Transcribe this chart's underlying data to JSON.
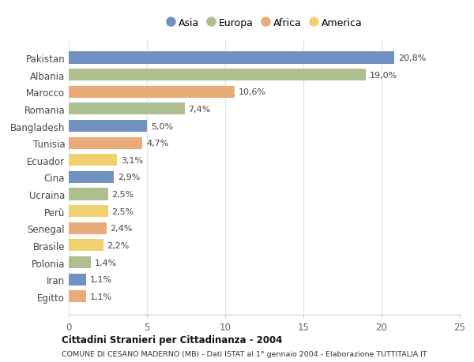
{
  "countries": [
    "Pakistan",
    "Albania",
    "Marocco",
    "Romania",
    "Bangladesh",
    "Tunisia",
    "Ecuador",
    "Cina",
    "Ucraina",
    "Perù",
    "Senegal",
    "Brasile",
    "Polonia",
    "Iran",
    "Egitto"
  ],
  "values": [
    20.8,
    19.0,
    10.6,
    7.4,
    5.0,
    4.7,
    3.1,
    2.9,
    2.5,
    2.5,
    2.4,
    2.2,
    1.4,
    1.1,
    1.1
  ],
  "labels": [
    "20,8%",
    "19,0%",
    "10,6%",
    "7,4%",
    "5,0%",
    "4,7%",
    "3,1%",
    "2,9%",
    "2,5%",
    "2,5%",
    "2,4%",
    "2,2%",
    "1,4%",
    "1,1%",
    "1,1%"
  ],
  "continents": [
    "Asia",
    "Europa",
    "Africa",
    "Europa",
    "Asia",
    "Africa",
    "America",
    "Asia",
    "Europa",
    "America",
    "Africa",
    "America",
    "Europa",
    "Asia",
    "Africa"
  ],
  "colors": {
    "Asia": "#7191c0",
    "Europa": "#adbf8e",
    "Africa": "#e8ab7a",
    "America": "#f0d070"
  },
  "legend_order": [
    "Asia",
    "Europa",
    "Africa",
    "America"
  ],
  "title1": "Cittadini Stranieri per Cittadinanza - 2004",
  "title2": "COMUNE DI CESANO MADERNO (MB) - Dati ISTAT al 1° gennaio 2004 - Elaborazione TUTTITALIA.IT",
  "xlim": [
    0,
    25
  ],
  "xticks": [
    0,
    5,
    10,
    15,
    20,
    25
  ],
  "bg_color": "#ffffff",
  "plot_bg_color": "#ffffff",
  "grid_color": "#e0e8f0",
  "bar_height": 0.7,
  "label_fontsize": 8.0,
  "ytick_fontsize": 8.5,
  "xtick_fontsize": 8.5
}
